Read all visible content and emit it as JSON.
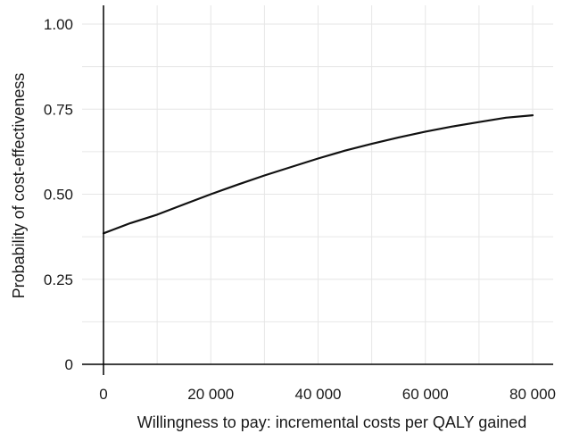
{
  "chart_data": {
    "type": "line",
    "title": "",
    "xlabel": "Willingness to pay: incremental costs per QALY gained",
    "ylabel": "Probability of cost-effectiveness",
    "xlim": [
      0,
      80000
    ],
    "ylim": [
      0,
      1
    ],
    "grid": true,
    "legend": "none",
    "x_ticks": [
      {
        "value": 0,
        "label": "0"
      },
      {
        "value": 20000,
        "label": "20 000"
      },
      {
        "value": 40000,
        "label": "40 000"
      },
      {
        "value": 60000,
        "label": "60 000"
      },
      {
        "value": 80000,
        "label": "80 000"
      }
    ],
    "y_ticks": [
      {
        "value": 0,
        "label": "0"
      },
      {
        "value": 0.25,
        "label": "0.25"
      },
      {
        "value": 0.5,
        "label": "0.50"
      },
      {
        "value": 0.75,
        "label": "0.75"
      },
      {
        "value": 1.0,
        "label": "1.00"
      }
    ],
    "x_minor_grid": [
      10000,
      30000,
      50000,
      70000
    ],
    "y_minor_grid": [
      0.125,
      0.375,
      0.625,
      0.875
    ],
    "series": [
      {
        "color": "#111111",
        "x": [
          0,
          5000,
          10000,
          15000,
          20000,
          25000,
          30000,
          35000,
          40000,
          45000,
          50000,
          55000,
          60000,
          65000,
          70000,
          75000,
          80000
        ],
        "y": [
          0.385,
          0.415,
          0.44,
          0.47,
          0.5,
          0.528,
          0.555,
          0.58,
          0.605,
          0.628,
          0.648,
          0.667,
          0.684,
          0.699,
          0.712,
          0.725,
          0.732
        ]
      }
    ]
  }
}
